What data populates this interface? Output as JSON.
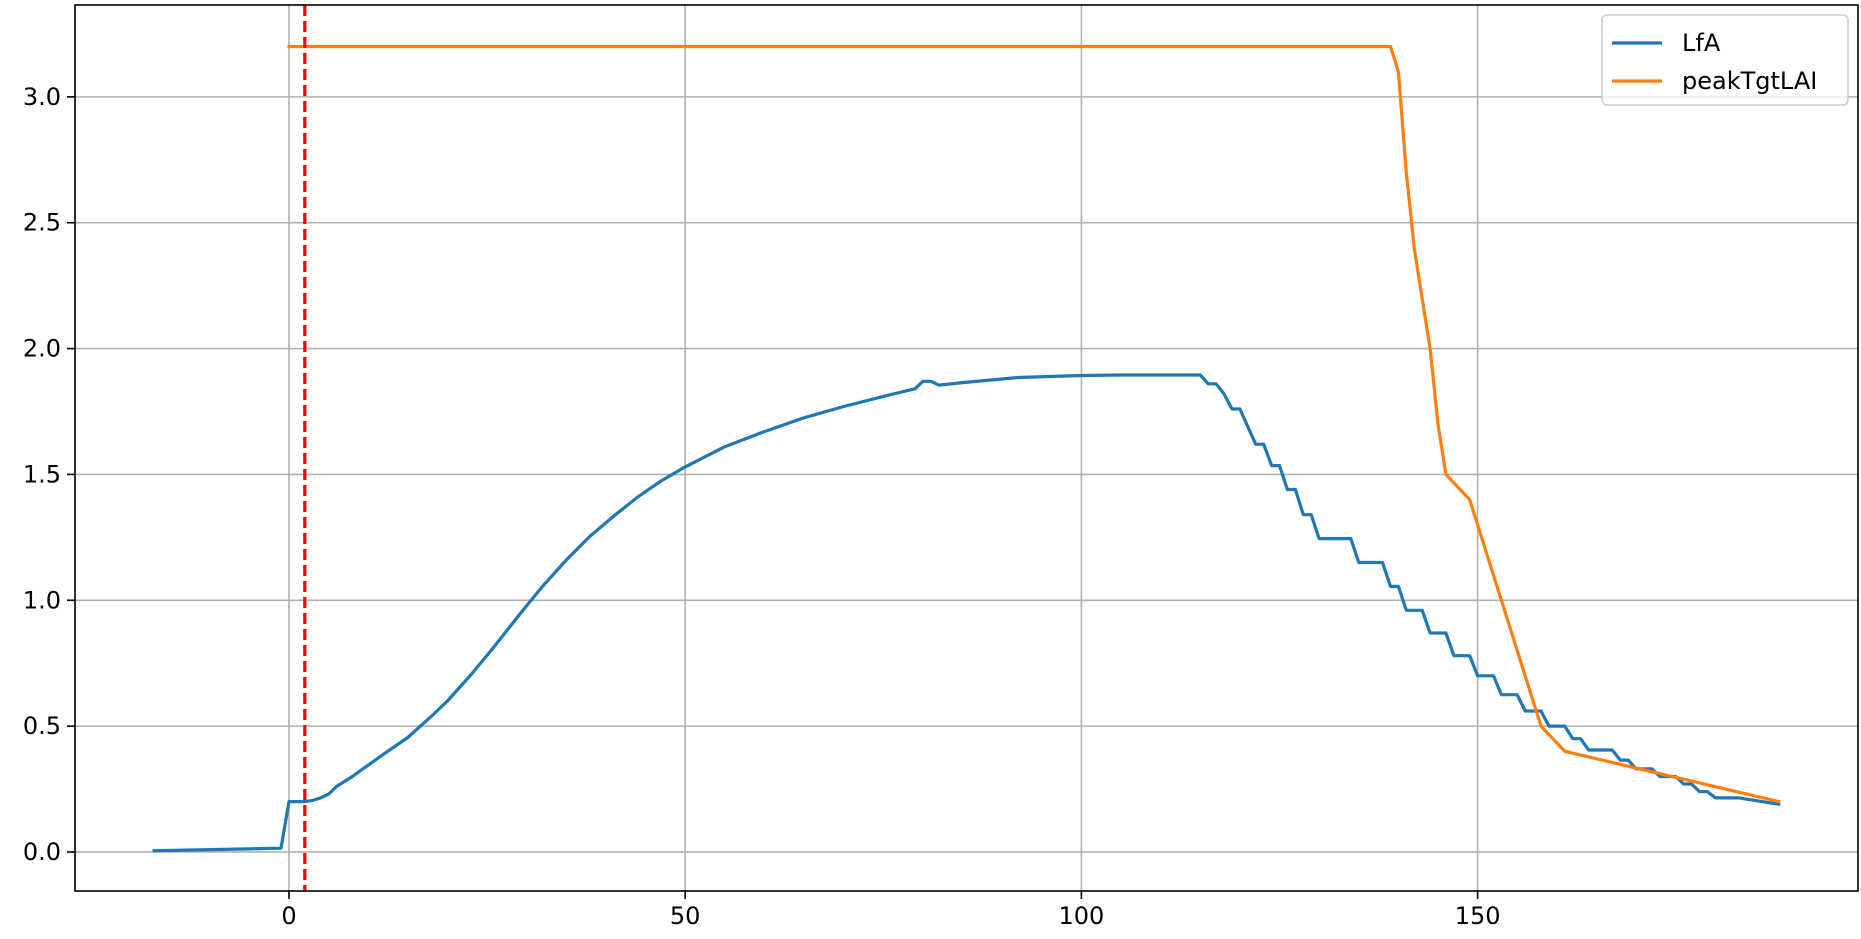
{
  "chart_data": {
    "type": "line",
    "title": "",
    "xlabel": "",
    "ylabel": "",
    "xlim": [
      -27,
      198
    ],
    "ylim": [
      -0.155,
      3.365
    ],
    "x_ticks": [
      0,
      50,
      100,
      150
    ],
    "y_ticks": [
      0.0,
      0.5,
      1.0,
      1.5,
      2.0,
      2.5,
      3.0
    ],
    "x_tick_labels": [
      "0",
      "50",
      "100",
      "150"
    ],
    "y_tick_labels": [
      "0.0",
      "0.5",
      "1.0",
      "1.5",
      "2.0",
      "2.5",
      "3.0"
    ],
    "grid": true,
    "legend_position": "top-right",
    "vline": {
      "x": 2,
      "color": "#ff0000",
      "style": "dashed"
    },
    "series": [
      {
        "name": "LfA",
        "color": "#1f77b4",
        "x": [
          -17,
          -1,
          0,
          2,
          3,
          4,
          5,
          6,
          8,
          10,
          12,
          15,
          18,
          20,
          23,
          26,
          29,
          32,
          35,
          38,
          41,
          44,
          47,
          50,
          55,
          60,
          65,
          70,
          75,
          79,
          80,
          81,
          82,
          85,
          92,
          100,
          105,
          110,
          115,
          116,
          117,
          118,
          119,
          120,
          121,
          122,
          123,
          124,
          125,
          126,
          127,
          128,
          129,
          130,
          131,
          134,
          135,
          136,
          138,
          139,
          140,
          141,
          142,
          143,
          144,
          145,
          146,
          147,
          148,
          149,
          150,
          151,
          152,
          153,
          154,
          155,
          156,
          157,
          158,
          159,
          160,
          161,
          162,
          163,
          164,
          165,
          166,
          167,
          168,
          169,
          170,
          171,
          172,
          173,
          174,
          175,
          176,
          177,
          178,
          179,
          180,
          181,
          182,
          183,
          188
        ],
        "y": [
          0.005,
          0.015,
          0.2,
          0.2,
          0.205,
          0.215,
          0.23,
          0.26,
          0.3,
          0.345,
          0.39,
          0.455,
          0.54,
          0.6,
          0.705,
          0.82,
          0.94,
          1.055,
          1.16,
          1.255,
          1.335,
          1.41,
          1.475,
          1.53,
          1.61,
          1.67,
          1.725,
          1.77,
          1.81,
          1.84,
          1.87,
          1.87,
          1.855,
          1.865,
          1.885,
          1.893,
          1.895,
          1.895,
          1.895,
          1.86,
          1.86,
          1.82,
          1.76,
          1.76,
          1.69,
          1.62,
          1.62,
          1.535,
          1.535,
          1.44,
          1.44,
          1.34,
          1.34,
          1.245,
          1.245,
          1.245,
          1.15,
          1.15,
          1.15,
          1.055,
          1.055,
          0.96,
          0.96,
          0.96,
          0.87,
          0.87,
          0.87,
          0.78,
          0.78,
          0.78,
          0.7,
          0.7,
          0.7,
          0.625,
          0.625,
          0.625,
          0.56,
          0.56,
          0.56,
          0.5,
          0.5,
          0.5,
          0.45,
          0.45,
          0.405,
          0.405,
          0.405,
          0.405,
          0.365,
          0.365,
          0.33,
          0.33,
          0.33,
          0.3,
          0.3,
          0.3,
          0.27,
          0.27,
          0.24,
          0.24,
          0.215,
          0.215,
          0.215,
          0.215,
          0.19
        ]
      },
      {
        "name": "peakTgtLAI",
        "color": "#ff7f0e",
        "x": [
          0,
          139,
          140,
          141,
          142,
          144,
          145,
          146,
          149,
          150,
          153,
          158,
          161,
          188
        ],
        "y": [
          3.2,
          3.2,
          3.1,
          2.7,
          2.4,
          2.0,
          1.7,
          1.5,
          1.4,
          1.3,
          1.0,
          0.5,
          0.4,
          0.2
        ]
      }
    ]
  }
}
